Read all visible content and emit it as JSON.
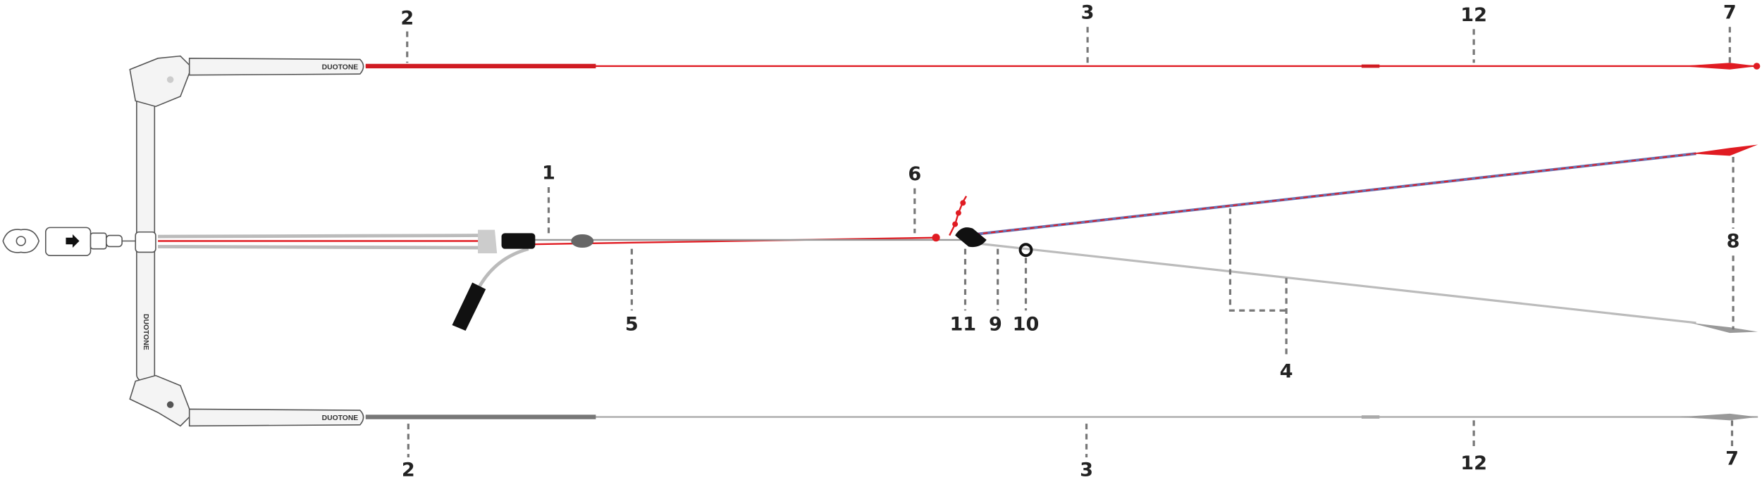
{
  "callouts": [
    "2",
    "3",
    "12",
    "7",
    "1",
    "6",
    "8",
    "5",
    "11",
    "9",
    "10",
    "4",
    "2",
    "3",
    "12",
    "7"
  ],
  "brand_marks": [
    "DUOTONE",
    "DUOTONE",
    "DUOTONE"
  ]
}
